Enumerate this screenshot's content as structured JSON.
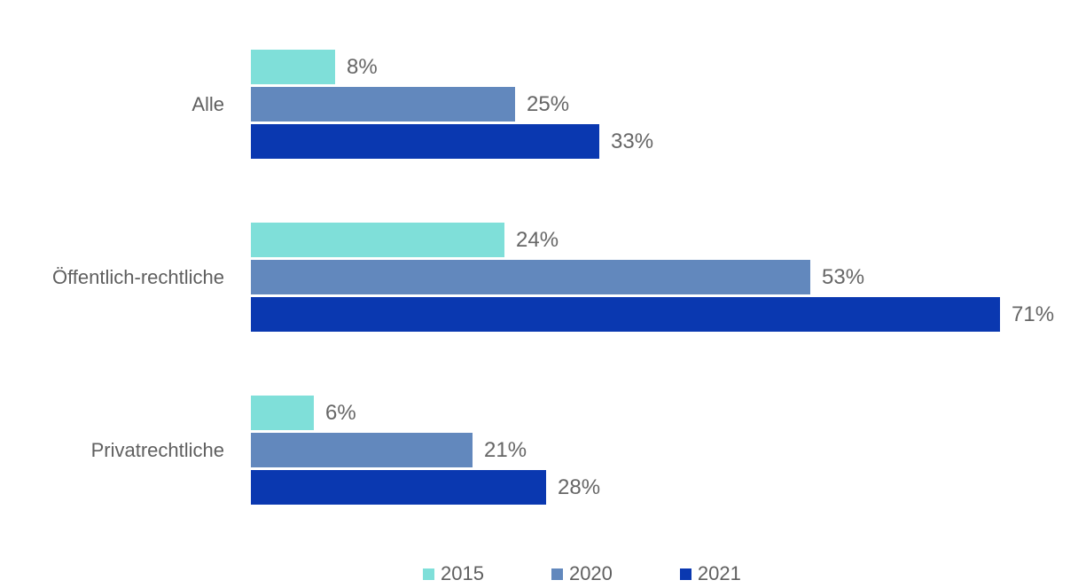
{
  "chart_data": {
    "type": "bar",
    "orientation": "horizontal",
    "title": "",
    "xlabel": "",
    "ylabel": "",
    "xlim": [
      0,
      75
    ],
    "grid": false,
    "axes_visible": false,
    "data_labels": true,
    "value_suffix": "%",
    "legend_position": "bottom",
    "background_color": "#ffffff",
    "label_color": "#5f5f5f",
    "value_label_color": "#666666",
    "categories": [
      "Alle",
      "Öffentlich-rechtliche",
      "Privatrechtliche"
    ],
    "series": [
      {
        "name": "2015",
        "color": "#7fdfd9",
        "values": [
          8,
          24,
          6
        ]
      },
      {
        "name": "2020",
        "color": "#6288bd",
        "values": [
          25,
          53,
          21
        ]
      },
      {
        "name": "2021",
        "color": "#0a38b0",
        "values": [
          33,
          71,
          28
        ]
      }
    ]
  },
  "legend": {
    "items": [
      {
        "label": "2015",
        "color": "#7fdfd9"
      },
      {
        "label": "2020",
        "color": "#6288bd"
      },
      {
        "label": "2021",
        "color": "#0a38b0"
      }
    ]
  }
}
